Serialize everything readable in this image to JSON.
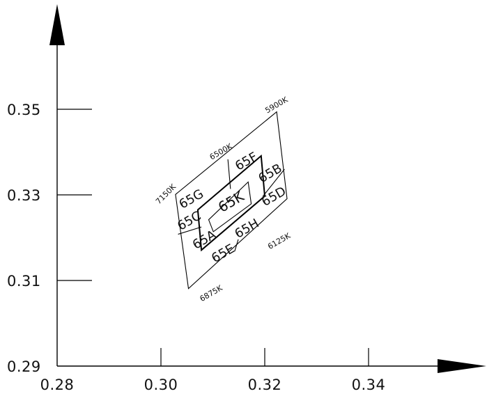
{
  "chart_data": {
    "type": "diagram",
    "x_ticks": [
      "0.28",
      "0.30",
      "0.32",
      "0.34"
    ],
    "y_ticks": [
      "0.29",
      "0.31",
      "0.33",
      "0.35"
    ],
    "xlim": [
      0.28,
      0.3575
    ],
    "ylim": [
      0.29,
      0.3675
    ],
    "regions": [
      {
        "name": "outer",
        "vertices": [
          [
            0.3028,
            0.3301
          ],
          [
            0.3223,
            0.3494
          ],
          [
            0.3243,
            0.3291
          ],
          [
            0.3053,
            0.3081
          ]
        ]
      },
      {
        "name": "middle",
        "vertices": [
          [
            0.3071,
            0.3265
          ],
          [
            0.3193,
            0.3391
          ],
          [
            0.32,
            0.3297
          ],
          [
            0.3078,
            0.3171
          ]
        ]
      },
      {
        "name": "inner",
        "vertices": [
          [
            0.3092,
            0.3242
          ],
          [
            0.3168,
            0.333
          ],
          [
            0.3174,
            0.3279
          ],
          [
            0.3101,
            0.3214
          ]
        ]
      }
    ],
    "divider_lines": [
      {
        "name": "divider-6500K",
        "from": [
          0.3129,
          0.3383
        ],
        "to": [
          0.3134,
          0.3314
        ]
      },
      {
        "name": "divider-6875K",
        "from": [
          0.3142,
          0.3168
        ],
        "to": [
          0.3149,
          0.3196
        ]
      },
      {
        "name": "divider-lower-left",
        "from": [
          0.3033,
          0.3208
        ],
        "to": [
          0.3078,
          0.3225
        ]
      },
      {
        "name": "divider-upper-right",
        "from": [
          0.3196,
          0.3296
        ],
        "to": [
          0.3238,
          0.336
        ]
      }
    ],
    "bin_labels": [
      {
        "text": "65G",
        "x": 0.3059,
        "y": 0.3289,
        "rotate": -30
      },
      {
        "text": "65F",
        "x": 0.3165,
        "y": 0.3377,
        "rotate": -30
      },
      {
        "text": "65B",
        "x": 0.3211,
        "y": 0.3349,
        "rotate": -30
      },
      {
        "text": "65C",
        "x": 0.3055,
        "y": 0.3238,
        "rotate": -30
      },
      {
        "text": "65K",
        "x": 0.3136,
        "y": 0.3282,
        "rotate": -30
      },
      {
        "text": "65D",
        "x": 0.3218,
        "y": 0.3295,
        "rotate": -30
      },
      {
        "text": "65A",
        "x": 0.3084,
        "y": 0.3194,
        "rotate": -30
      },
      {
        "text": "65E",
        "x": 0.312,
        "y": 0.3162,
        "rotate": -30
      },
      {
        "text": "65H",
        "x": 0.3166,
        "y": 0.322,
        "rotate": -30
      }
    ],
    "cct_labels": [
      {
        "text": "5900K",
        "x": 0.3223,
        "y": 0.3509,
        "rotate": -30
      },
      {
        "text": "6500K",
        "x": 0.3116,
        "y": 0.34,
        "rotate": -30
      },
      {
        "text": "7150K",
        "x": 0.301,
        "y": 0.3301,
        "rotate": -45
      },
      {
        "text": "6125K",
        "x": 0.3228,
        "y": 0.3191,
        "rotate": -30
      },
      {
        "text": "6875K",
        "x": 0.3097,
        "y": 0.3069,
        "rotate": -30
      }
    ]
  }
}
